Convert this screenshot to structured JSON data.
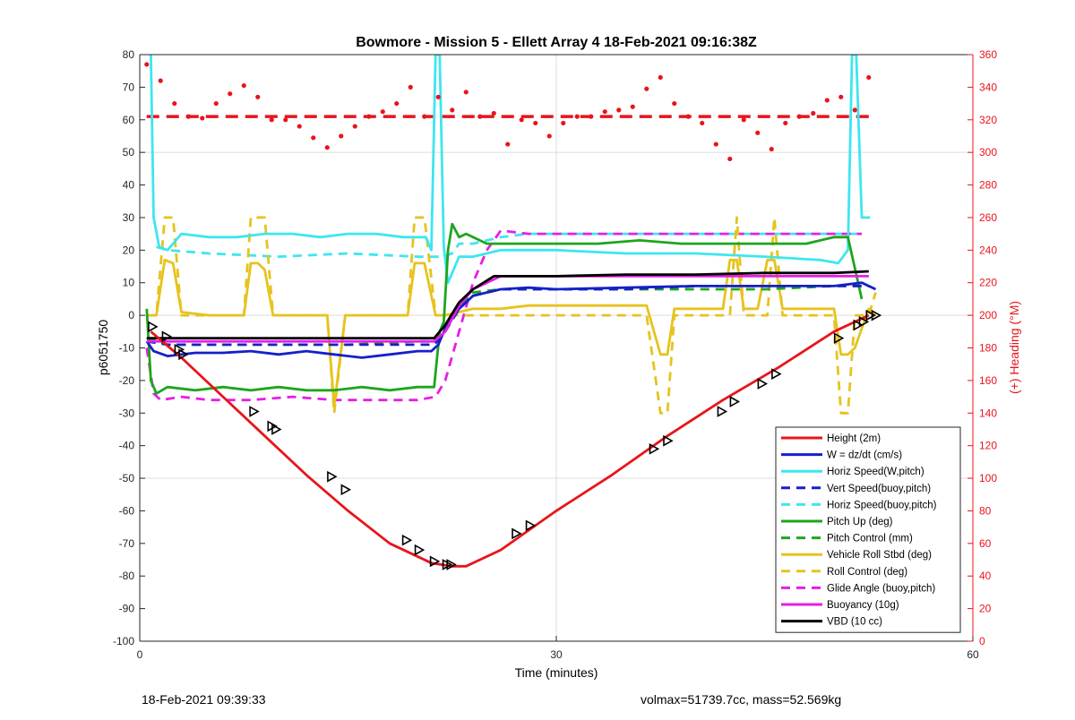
{
  "chart_data": {
    "type": "line",
    "title": "Bowmore - Mission 5 - Ellett Array 4 18-Feb-2021 09:16:38Z",
    "xlabel": "Time (minutes)",
    "ylabel": "p6051750",
    "y2label": "(+) Heading (°M)",
    "xlim": [
      0,
      60
    ],
    "ylim": [
      -100,
      80
    ],
    "y2lim": [
      0,
      360
    ],
    "xticks": [
      0,
      30,
      60
    ],
    "yticks": [
      -100,
      -90,
      -80,
      -70,
      -60,
      -50,
      -40,
      -30,
      -20,
      -10,
      0,
      10,
      20,
      30,
      40,
      50,
      60,
      70,
      80
    ],
    "y2ticks": [
      0,
      20,
      40,
      60,
      80,
      100,
      120,
      140,
      160,
      180,
      200,
      220,
      240,
      260,
      280,
      300,
      320,
      340,
      360
    ],
    "grid": true,
    "legend_position": "bottom-right",
    "colors": {
      "red": "#e8141c",
      "blue": "#1520c8",
      "cyan": "#3ee6ee",
      "green": "#1ea51e",
      "yellow": "#e6c31e",
      "magenta": "#e61ee6",
      "black": "#000000"
    },
    "series": [
      {
        "name": "Height (2m)",
        "color": "red",
        "style": "solid",
        "x": [
          0.8,
          3,
          6,
          9,
          12,
          15,
          18,
          21,
          22.5,
          23.5,
          26,
          30,
          34,
          38,
          42,
          46,
          50,
          52.5
        ],
        "y": [
          -5,
          -13,
          -25,
          -37,
          -49,
          -60,
          -70,
          -76,
          -77,
          -77,
          -72,
          -60,
          -49,
          -37,
          -26,
          -16,
          -5,
          0
        ]
      },
      {
        "name": "W = dz/dt (cm/s)",
        "color": "blue",
        "style": "solid",
        "x": [
          0.5,
          1,
          2,
          4,
          6,
          8,
          10,
          12,
          14,
          16,
          18,
          20,
          21,
          21.5,
          22,
          23,
          24,
          26,
          28,
          30,
          35,
          40,
          45,
          50,
          52,
          53
        ],
        "y": [
          -8,
          -11,
          -12.5,
          -11.5,
          -11.5,
          -11,
          -12,
          -11,
          -12,
          -13,
          -12,
          -11,
          -11,
          -9,
          -4,
          2,
          6,
          8,
          8.5,
          8,
          8.5,
          9,
          9,
          9,
          10,
          8
        ]
      },
      {
        "name": "Horiz Speed(W,pitch)",
        "color": "cyan",
        "style": "solid",
        "x": [
          0.8,
          1.0,
          1.4,
          2,
          3,
          5,
          7,
          9,
          11,
          13,
          15,
          17,
          19,
          20.6,
          21.0,
          21.3,
          21.6,
          21.9,
          22.2,
          22.6,
          23,
          24,
          26,
          28,
          30,
          35,
          40,
          45,
          49,
          50.3,
          51.0,
          51.3,
          51.6,
          52.0,
          52.3,
          52.6
        ],
        "y": [
          80,
          30,
          21,
          20,
          25,
          24,
          24,
          25,
          25,
          24,
          25,
          25,
          24,
          24,
          20,
          80,
          80,
          21,
          10,
          14,
          18,
          18,
          20,
          20,
          20,
          19,
          19,
          18,
          17,
          16,
          20,
          80,
          80,
          30,
          30,
          30
        ]
      },
      {
        "name": "Vert Speed(buoy,pitch)",
        "color": "blue",
        "style": "dashed",
        "x": [
          0.5,
          2,
          5,
          10,
          15,
          20,
          21.2,
          22,
          23,
          24,
          26,
          28,
          30,
          35,
          40,
          45,
          50,
          52.5
        ],
        "y": [
          -8,
          -9,
          -9,
          -9,
          -9,
          -9,
          -9,
          -5,
          2,
          6,
          8,
          8,
          8,
          8,
          9,
          9,
          9,
          9
        ]
      },
      {
        "name": "Horiz Speed(buoy,pitch)",
        "color": "cyan",
        "style": "dashed",
        "x": [
          1.2,
          2,
          5,
          10,
          15,
          20,
          21.2,
          21.8,
          22.5,
          23,
          24,
          26,
          28,
          30,
          35,
          40,
          45,
          50,
          52
        ],
        "y": [
          21,
          20,
          19,
          18,
          19,
          18,
          18,
          18,
          19,
          22,
          22,
          24,
          25,
          25,
          25,
          25,
          25,
          25,
          25
        ]
      },
      {
        "name": "Pitch Up (deg)",
        "color": "green",
        "style": "solid",
        "x": [
          0.5,
          0.8,
          1.2,
          2,
          4,
          6,
          8,
          10,
          12,
          14,
          16,
          18,
          20,
          21.2,
          21.6,
          21.9,
          22.2,
          22.5,
          23,
          23.5,
          25,
          27,
          30,
          33,
          36,
          39,
          42,
          45,
          48,
          50,
          51,
          52
        ],
        "y": [
          2,
          -20,
          -24,
          -22,
          -23,
          -22,
          -23,
          -22,
          -23,
          -23,
          -22,
          -23,
          -22,
          -22,
          -5,
          -2,
          20,
          28,
          24,
          25,
          22,
          22,
          22,
          22,
          23,
          22,
          22,
          22,
          22,
          24,
          24,
          5
        ]
      },
      {
        "name": "Pitch Control (mm)",
        "color": "green",
        "style": "dashed",
        "x": [
          0.5,
          2,
          5,
          10,
          15,
          20,
          21.2,
          22,
          23,
          24,
          26,
          30,
          35,
          40,
          45,
          50,
          52.5
        ],
        "y": [
          -7,
          -9,
          -9,
          -9,
          -9,
          -8,
          -8,
          -3,
          3,
          7,
          8,
          8,
          8,
          8,
          8,
          9,
          9
        ]
      },
      {
        "name": "Vehicle Roll Stbd (deg)",
        "color": "yellow",
        "style": "solid",
        "x": [
          0.5,
          1.2,
          1.8,
          2.4,
          3,
          5,
          7.5,
          8,
          8.5,
          9,
          9.6,
          12,
          13.5,
          14,
          14.8,
          17,
          19.3,
          19.8,
          20.5,
          21.3,
          22,
          24,
          26,
          28,
          30,
          34,
          36.5,
          37.5,
          38,
          38.5,
          40,
          42,
          42.5,
          43,
          43.5,
          44.5,
          45.2,
          45.7,
          46.3,
          47,
          50,
          50.5,
          51,
          51.5,
          52.5,
          53
        ],
        "y": [
          0,
          0,
          17,
          16,
          1,
          0,
          0,
          16,
          16,
          14,
          0,
          0,
          0,
          -28,
          0,
          0,
          0,
          16,
          16,
          0,
          0,
          2,
          2,
          3,
          3,
          3,
          3,
          -12,
          -12,
          2,
          2,
          2,
          17,
          17,
          2,
          2,
          17,
          17,
          2,
          2,
          2,
          -12,
          -12,
          -10,
          2,
          0
        ]
      },
      {
        "name": "Roll Control (deg)",
        "color": "yellow",
        "style": "dashed",
        "x": [
          0.5,
          1.2,
          1.8,
          2.4,
          3,
          5,
          7.5,
          8,
          9,
          9.6,
          12,
          13.5,
          14,
          14.8,
          17,
          19.3,
          19.8,
          20.5,
          21.3,
          22,
          30,
          36.5,
          37.5,
          38,
          38.5,
          42.5,
          43,
          43.5,
          45.2,
          45.7,
          46.3,
          50,
          50.5,
          51,
          51.5,
          52.5,
          53
        ],
        "y": [
          0,
          0,
          30,
          30,
          0,
          0,
          0,
          30,
          30,
          0,
          0,
          0,
          -30,
          0,
          0,
          0,
          30,
          30,
          0,
          0,
          0,
          0,
          -30,
          -30,
          0,
          0,
          30,
          0,
          0,
          30,
          0,
          0,
          -30,
          -30,
          0,
          0,
          7
        ]
      },
      {
        "name": "Glide Angle (buoy,pitch)",
        "color": "magenta",
        "style": "dashed",
        "x": [
          0.5,
          1,
          1.5,
          3,
          5,
          8,
          11,
          14,
          17,
          20,
          21.3,
          22,
          23,
          24,
          25,
          26,
          28,
          30,
          35,
          40,
          45,
          50,
          52
        ],
        "y": [
          -10,
          -24,
          -26,
          -25,
          -26,
          -26,
          -25,
          -26,
          -26,
          -26,
          -25,
          -20,
          -5,
          10,
          20,
          26,
          25,
          25,
          25,
          25,
          25,
          25,
          25
        ]
      },
      {
        "name": "Buoyancy (10g)",
        "color": "magenta",
        "style": "solid",
        "x": [
          0.5,
          2,
          5,
          10,
          15,
          20,
          21.2,
          22,
          23,
          24,
          26,
          30,
          35,
          40,
          45,
          50,
          52.5
        ],
        "y": [
          -8,
          -8,
          -8,
          -8,
          -8,
          -8,
          -8,
          -5,
          3,
          8,
          12,
          12,
          12,
          12,
          12,
          12,
          12
        ]
      },
      {
        "name": "VBD (10 cc)",
        "color": "black",
        "style": "solid",
        "x": [
          0.5,
          2,
          5,
          10,
          15,
          20,
          21.2,
          22,
          23,
          24,
          25.5,
          30,
          35,
          40,
          45,
          50,
          52.5
        ],
        "y": [
          -7,
          -7,
          -7,
          -7,
          -7,
          -7,
          -7,
          -3,
          4,
          8,
          12,
          12,
          12.5,
          12.5,
          13,
          13,
          13.5
        ]
      }
    ],
    "heading_data": {
      "axis": "right",
      "color": "red",
      "target_heading": 322,
      "x": [
        0.5,
        1.5,
        2.5,
        3.5,
        4.5,
        5.5,
        6.5,
        7.5,
        8.5,
        9.5,
        10.5,
        11.5,
        12.5,
        13.5,
        14.5,
        15.5,
        16.5,
        17.5,
        18.5,
        19.5,
        20.5,
        21.5,
        22.5,
        23.5,
        24.5,
        25.5,
        26.5,
        27.5,
        28.5,
        29.5,
        30.5,
        31.5,
        32.5,
        33.5,
        34.5,
        35.5,
        36.5,
        37.5,
        38.5,
        39.5,
        40.5,
        41.5,
        42.5,
        43.5,
        44.5,
        45.5,
        46.5,
        47.5,
        48.5,
        49.5,
        50.5,
        51.5,
        52.5
      ],
      "y": [
        354,
        344,
        330,
        322,
        321,
        330,
        336,
        341,
        334,
        320,
        320,
        316,
        309,
        303,
        310,
        316,
        322,
        325,
        330,
        340,
        322,
        334,
        326,
        337,
        322,
        324,
        305,
        320,
        318,
        310,
        318,
        322,
        322,
        325,
        326,
        328,
        339,
        346,
        330,
        322,
        318,
        305,
        296,
        320,
        312,
        302,
        318,
        322,
        324,
        332,
        334,
        326,
        346
      ]
    },
    "triangle_markers": {
      "x": [
        0.9,
        1.9,
        2.8,
        3.1,
        8.2,
        9.5,
        9.8,
        13.8,
        14.8,
        19.2,
        20.1,
        21.2,
        22.1,
        22.4,
        27.1,
        28.1,
        37.0,
        38.0,
        41.9,
        42.8,
        44.8,
        45.8,
        50.3,
        51.7,
        52.1,
        52.6,
        53.0
      ],
      "y": [
        -3.5,
        -6.5,
        -10.5,
        -12,
        -29.5,
        -34,
        -35,
        -49.5,
        -53.5,
        -69,
        -72,
        -75.5,
        -76.5,
        -76.5,
        -67,
        -64.5,
        -41,
        -38.5,
        -29.5,
        -26.5,
        -21,
        -18,
        -7,
        -3,
        -2,
        0,
        0
      ]
    }
  },
  "footer": {
    "left": "18-Feb-2021 09:39:33",
    "right": "volmax=51739.7cc, mass=52.569kg"
  }
}
